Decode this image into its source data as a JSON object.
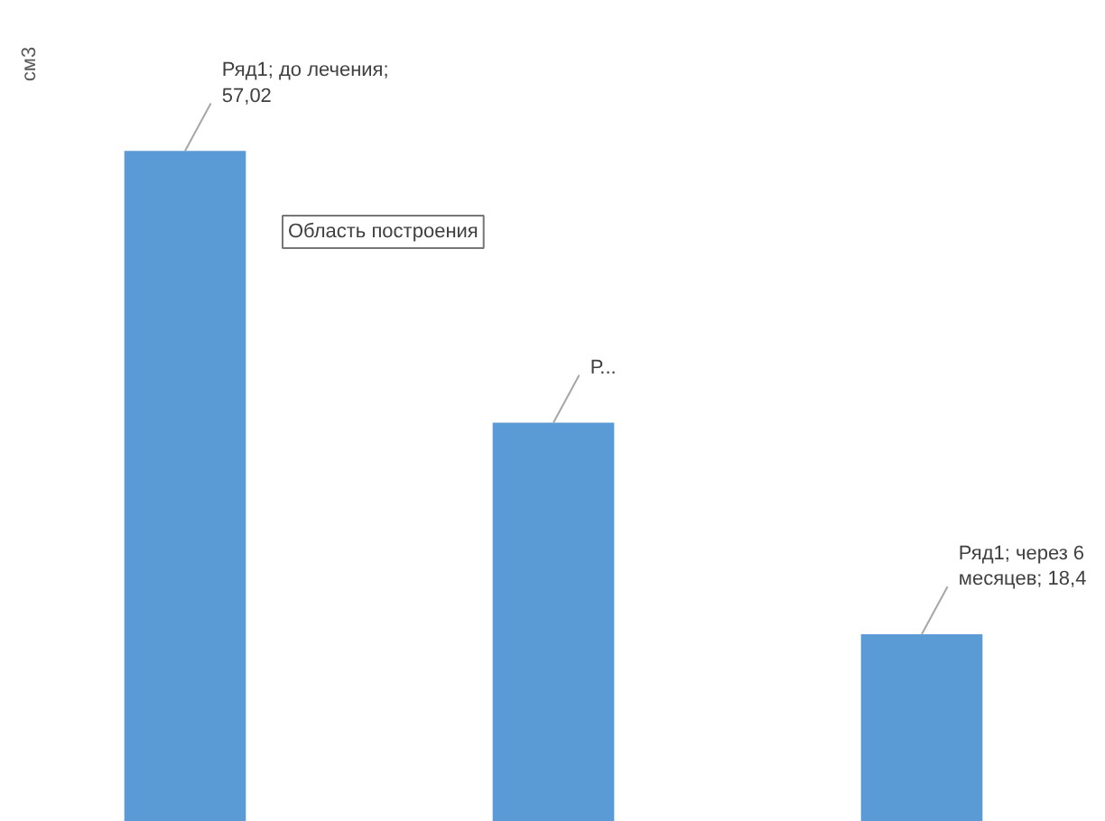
{
  "chart_data": {
    "type": "bar",
    "ylabel": "см3",
    "categories": [
      null,
      null,
      null
    ],
    "values": [
      57.02,
      35.3,
      18.4
    ],
    "color": "#5b9bd5",
    "value_labels": [
      "Ряд1; до лечения;\n57,02",
      "Р...",
      "Ряд1; через 6\nмесяцев; 18,4"
    ],
    "ylim": [
      3.4,
      69
    ],
    "annotations": [
      "Область построения"
    ],
    "grid": false
  }
}
